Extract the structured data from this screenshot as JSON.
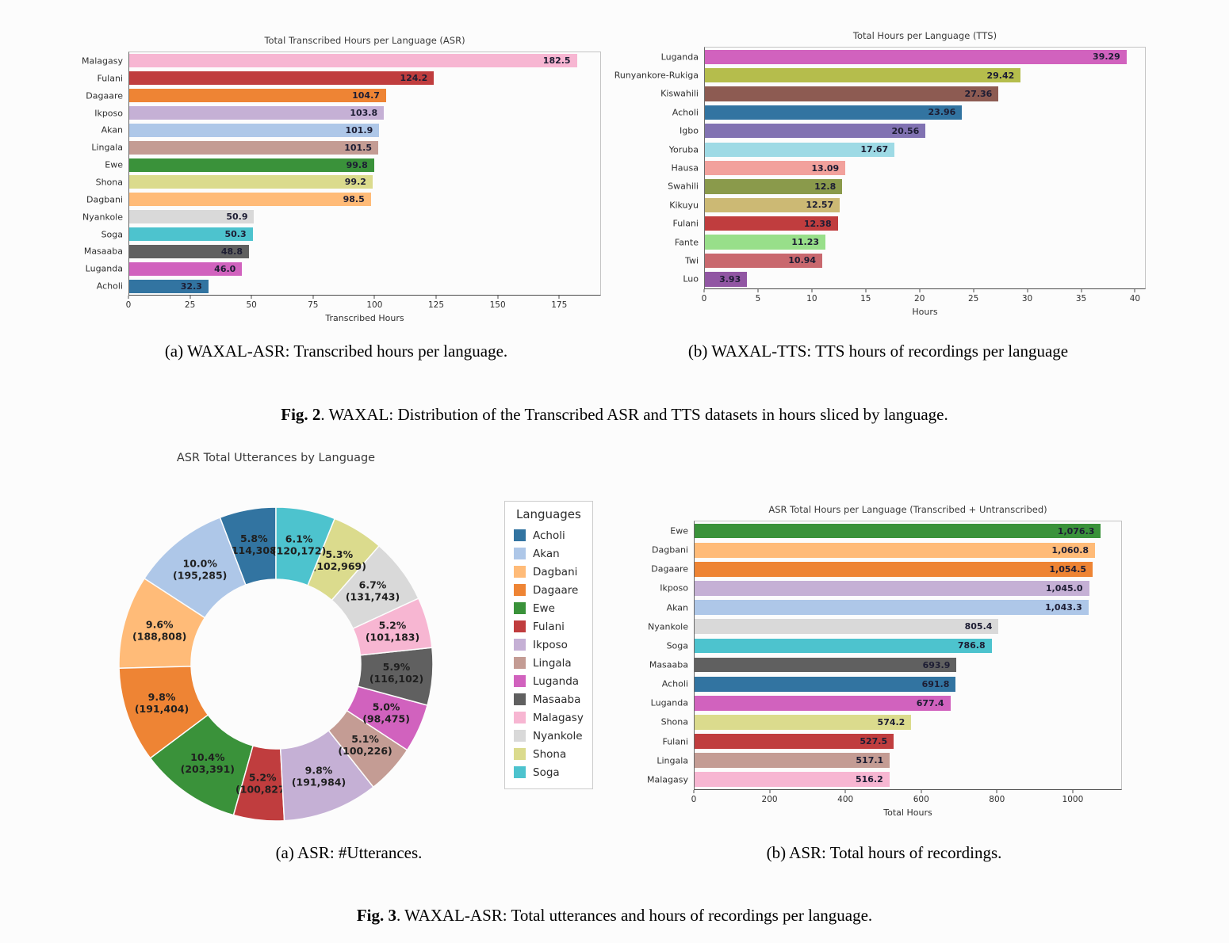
{
  "figure2": {
    "caption_a": "(a) WAXAL-ASR: Transcribed hours per language.",
    "caption_b": "(b) WAXAL-TTS: TTS hours of recordings per language",
    "fig_label": "Fig. 2",
    "fig_text": ". WAXAL: Distribution of the Transcribed ASR and TTS datasets in hours sliced by language."
  },
  "figure3": {
    "caption_a": "(a) ASR: #Utterances.",
    "caption_b": "(b) ASR: Total hours of recordings.",
    "fig_label": "Fig. 3",
    "fig_text": ". WAXAL-ASR: Total utterances and hours of recordings per language."
  },
  "legend": {
    "title": "Languages",
    "items": [
      {
        "label": "Acholi",
        "color": "#3274a1"
      },
      {
        "label": "Akan",
        "color": "#aec7e8"
      },
      {
        "label": "Dagbani",
        "color": "#ffbb78"
      },
      {
        "label": "Dagaare",
        "color": "#ee8434"
      },
      {
        "label": "Ewe",
        "color": "#3a923a"
      },
      {
        "label": "Fulani",
        "color": "#c03d3e"
      },
      {
        "label": "Ikposo",
        "color": "#c5b0d5"
      },
      {
        "label": "Lingala",
        "color": "#c49c94"
      },
      {
        "label": "Luganda",
        "color": "#d162be"
      },
      {
        "label": "Masaaba",
        "color": "#606060"
      },
      {
        "label": "Malagasy",
        "color": "#f7b6d2"
      },
      {
        "label": "Nyankole",
        "color": "#d9d9d9"
      },
      {
        "label": "Shona",
        "color": "#dbdb8d"
      },
      {
        "label": "Soga",
        "color": "#4dc3ce"
      }
    ]
  },
  "chart_data": [
    {
      "id": "asr-transcribed-hours",
      "type": "bar",
      "orientation": "horizontal",
      "title": "Total Transcribed Hours per Language (ASR)",
      "xlabel": "Transcribed Hours",
      "xlim": [
        0,
        192
      ],
      "xticks": [
        0,
        25,
        50,
        75,
        100,
        125,
        150,
        175
      ],
      "grid": false,
      "categories": [
        "Malagasy",
        "Fulani",
        "Dagaare",
        "Ikposo",
        "Akan",
        "Lingala",
        "Ewe",
        "Shona",
        "Dagbani",
        "Nyankole",
        "Soga",
        "Masaaba",
        "Luganda",
        "Acholi"
      ],
      "values": [
        182.5,
        124.2,
        104.7,
        103.8,
        101.9,
        101.5,
        99.8,
        99.2,
        98.5,
        50.9,
        50.3,
        48.8,
        46.0,
        32.3
      ],
      "value_labels": [
        "182.5",
        "124.2",
        "104.7",
        "103.8",
        "101.9",
        "101.5",
        "99.8",
        "99.2",
        "98.5",
        "50.9",
        "50.3",
        "48.8",
        "46.0",
        "32.3"
      ],
      "colors": [
        "#f7b6d2",
        "#c03d3e",
        "#ee8434",
        "#c5b0d5",
        "#aec7e8",
        "#c49c94",
        "#3a923a",
        "#dbdb8d",
        "#ffbb78",
        "#d9d9d9",
        "#4dc3ce",
        "#606060",
        "#d162be",
        "#3274a1"
      ]
    },
    {
      "id": "tts-hours",
      "type": "bar",
      "orientation": "horizontal",
      "title": "Total Hours per Language (TTS)",
      "xlabel": "Hours",
      "xlim": [
        0,
        41
      ],
      "xticks": [
        0,
        5,
        10,
        15,
        20,
        25,
        30,
        35,
        40
      ],
      "grid": false,
      "categories": [
        "Luganda",
        "Runyankore-Rukiga",
        "Kiswahili",
        "Acholi",
        "Igbo",
        "Yoruba",
        "Hausa",
        "Swahili",
        "Kikuyu",
        "Fulani",
        "Fante",
        "Twi",
        "Luo"
      ],
      "values": [
        39.29,
        29.42,
        27.36,
        23.96,
        20.56,
        17.67,
        13.09,
        12.8,
        12.57,
        12.38,
        11.23,
        10.94,
        3.93
      ],
      "value_labels": [
        "39.29",
        "29.42",
        "27.36",
        "23.96",
        "20.56",
        "17.67",
        "13.09",
        "12.8",
        "12.57",
        "12.38",
        "11.23",
        "10.94",
        "3.93"
      ],
      "colors": [
        "#d162be",
        "#b5bd4c",
        "#8d5b52",
        "#3274a1",
        "#8172b2",
        "#9edae5",
        "#f2a19c",
        "#8a9a4b",
        "#ccb974",
        "#c03d3e",
        "#98df8a",
        "#c9686e",
        "#9156a3"
      ]
    },
    {
      "id": "asr-utterances",
      "type": "donut",
      "title": "ASR Total Utterances by Language",
      "start_angle": 90,
      "direction": "counterclockwise",
      "outer_radius": 198,
      "inner_radius": 107,
      "categories": [
        "Acholi",
        "Akan",
        "Dagbani",
        "Dagaare",
        "Ewe",
        "Fulani",
        "Ikposo",
        "Lingala",
        "Luganda",
        "Masaaba",
        "Malagasy",
        "Nyankole",
        "Shona",
        "Soga"
      ],
      "percent": [
        5.8,
        10.0,
        9.6,
        9.8,
        10.4,
        5.2,
        9.8,
        5.1,
        5.0,
        5.9,
        5.2,
        6.7,
        5.3,
        6.1
      ],
      "counts": [
        114308,
        195285,
        188808,
        191404,
        203391,
        100827,
        191984,
        100226,
        98475,
        116102,
        101183,
        131743,
        102969,
        120172
      ],
      "labels_pct": [
        "5.8%",
        "10.0%",
        "9.6%",
        "9.8%",
        "10.4%",
        "5.2%",
        "9.8%",
        "5.1%",
        "5.0%",
        "5.9%",
        "5.2%",
        "6.7%",
        "5.3%",
        "6.1%"
      ],
      "labels_count": [
        "(114,308)",
        "(195,285)",
        "(188,808)",
        "(191,404)",
        "(203,391)",
        "(100,827)",
        "(191,984)",
        "(100,226)",
        "(98,475)",
        "(116,102)",
        "(101,183)",
        "(131,743)",
        "(102,969)",
        "(120,172)"
      ],
      "colors": [
        "#3274a1",
        "#aec7e8",
        "#ffbb78",
        "#ee8434",
        "#3a923a",
        "#c03d3e",
        "#c5b0d5",
        "#c49c94",
        "#d162be",
        "#606060",
        "#f7b6d2",
        "#d9d9d9",
        "#dbdb8d",
        "#4dc3ce"
      ]
    },
    {
      "id": "asr-total-hours",
      "type": "bar",
      "orientation": "horizontal",
      "title": "ASR Total Hours per Language (Transcribed + Untranscribed)",
      "xlabel": "Total Hours",
      "xlim": [
        0,
        1130
      ],
      "xticks": [
        0,
        200,
        400,
        600,
        800,
        1000
      ],
      "grid": false,
      "categories": [
        "Ewe",
        "Dagbani",
        "Dagaare",
        "Ikposo",
        "Akan",
        "Nyankole",
        "Soga",
        "Masaaba",
        "Acholi",
        "Luganda",
        "Shona",
        "Fulani",
        "Lingala",
        "Malagasy"
      ],
      "values": [
        1076.3,
        1060.8,
        1054.5,
        1045.0,
        1043.3,
        805.4,
        786.8,
        693.9,
        691.8,
        677.4,
        574.2,
        527.5,
        517.1,
        516.2
      ],
      "value_labels": [
        "1,076.3",
        "1,060.8",
        "1,054.5",
        "1,045.0",
        "1,043.3",
        "805.4",
        "786.8",
        "693.9",
        "691.8",
        "677.4",
        "574.2",
        "527.5",
        "517.1",
        "516.2"
      ],
      "colors": [
        "#3a923a",
        "#ffbb78",
        "#ee8434",
        "#c5b0d5",
        "#aec7e8",
        "#d9d9d9",
        "#4dc3ce",
        "#606060",
        "#3274a1",
        "#d162be",
        "#dbdb8d",
        "#c03d3e",
        "#c49c94",
        "#f7b6d2"
      ]
    }
  ]
}
